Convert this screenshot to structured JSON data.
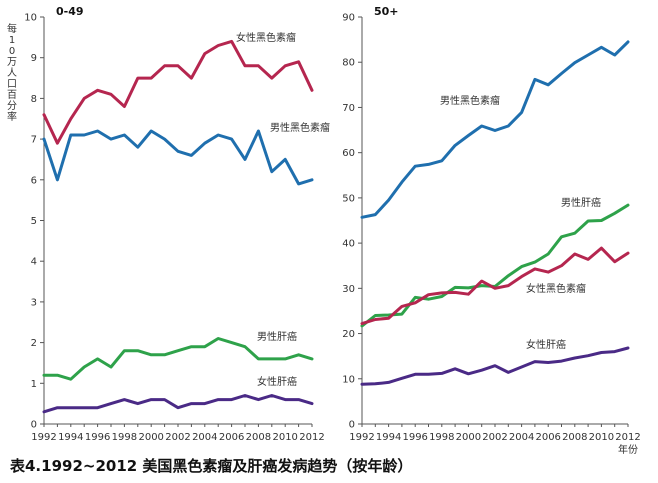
{
  "caption": "表4.1992~2012 美国黑色素瘤及肝癌发病趋势（按年龄）",
  "chart_data": [
    {
      "type": "line",
      "title": "0-49",
      "ylabel": "每10万人口百分率",
      "xlabel": "",
      "ylim": [
        0,
        10
      ],
      "yticks": [
        "0",
        "1",
        "2",
        "3",
        "4",
        "5",
        "6",
        "7",
        "8",
        "9",
        "10"
      ],
      "xticks": [
        "1992",
        "1994",
        "1996",
        "1998",
        "2000",
        "2002",
        "2004",
        "2006",
        "2008",
        "2010",
        "2012"
      ],
      "x": [
        1992,
        1993,
        1994,
        1995,
        1996,
        1997,
        1998,
        1999,
        2000,
        2001,
        2002,
        2003,
        2004,
        2005,
        2006,
        2007,
        2008,
        2009,
        2010,
        2011,
        2012
      ],
      "series": [
        {
          "name": "女性黑色素瘤",
          "color": "#b5264f",
          "values": [
            7.6,
            6.9,
            7.5,
            8.0,
            8.2,
            8.1,
            7.8,
            8.5,
            8.5,
            8.8,
            8.8,
            8.5,
            9.1,
            9.3,
            9.4,
            8.8,
            8.8,
            8.5,
            8.8,
            8.9,
            8.2
          ]
        },
        {
          "name": "男性黑色素瘤",
          "color": "#1f6fae",
          "values": [
            7.0,
            6.0,
            7.1,
            7.1,
            7.2,
            7.0,
            7.1,
            6.8,
            7.2,
            7.0,
            6.7,
            6.6,
            6.9,
            7.1,
            7.0,
            6.5,
            7.2,
            6.2,
            6.5,
            5.9,
            6.0
          ]
        },
        {
          "name": "男性肝癌",
          "color": "#2ea24a",
          "values": [
            1.2,
            1.2,
            1.1,
            1.4,
            1.6,
            1.4,
            1.8,
            1.8,
            1.7,
            1.7,
            1.8,
            1.9,
            1.9,
            2.1,
            2.0,
            1.9,
            1.6,
            1.6,
            1.6,
            1.7,
            1.6
          ]
        },
        {
          "name": "女性肝癌",
          "color": "#4a2a86",
          "values": [
            0.3,
            0.4,
            0.4,
            0.4,
            0.4,
            0.5,
            0.6,
            0.5,
            0.6,
            0.6,
            0.4,
            0.5,
            0.5,
            0.6,
            0.6,
            0.7,
            0.6,
            0.7,
            0.6,
            0.6,
            0.5
          ]
        }
      ]
    },
    {
      "type": "line",
      "title": "50+",
      "xlabel": "年份",
      "ylabel": "",
      "ylim": [
        0,
        90
      ],
      "yticks": [
        "0",
        "10",
        "20",
        "30",
        "40",
        "50",
        "60",
        "70",
        "80",
        "90"
      ],
      "xticks": [
        "1992",
        "1994",
        "1996",
        "1998",
        "2000",
        "2002",
        "2004",
        "2006",
        "2008",
        "2010",
        "2012"
      ],
      "x": [
        1992,
        1993,
        1994,
        1995,
        1996,
        1997,
        1998,
        1999,
        2000,
        2001,
        2002,
        2003,
        2004,
        2005,
        2006,
        2007,
        2008,
        2009,
        2010,
        2011,
        2012
      ],
      "series": [
        {
          "name": "男性黑色素瘤",
          "color": "#1f6fae",
          "values": [
            45.7,
            46.3,
            49.5,
            53.5,
            57.0,
            57.4,
            58.2,
            61.6,
            63.8,
            65.9,
            64.9,
            65.9,
            68.9,
            76.2,
            75.0,
            77.5,
            79.9,
            81.6,
            83.3,
            81.6,
            84.5
          ]
        },
        {
          "name": "男性肝癌",
          "color": "#2ea24a",
          "values": [
            21.7,
            24.0,
            24.1,
            24.3,
            28.0,
            27.6,
            28.2,
            30.2,
            30.1,
            30.6,
            30.4,
            32.8,
            34.8,
            35.8,
            37.6,
            41.4,
            42.2,
            44.9,
            45.0,
            46.6,
            48.4
          ]
        },
        {
          "name": "女性黑色素瘤",
          "color": "#b5264f",
          "values": [
            22.2,
            23.1,
            23.4,
            26.0,
            26.8,
            28.6,
            29.0,
            29.1,
            28.7,
            31.6,
            30.0,
            30.6,
            32.6,
            34.3,
            33.6,
            35.0,
            37.6,
            36.4,
            38.9,
            35.9,
            37.8
          ]
        },
        {
          "name": "女性肝癌",
          "color": "#4a2a86",
          "values": [
            8.8,
            8.9,
            9.2,
            10.1,
            11.0,
            11.0,
            11.2,
            12.2,
            11.1,
            11.9,
            12.9,
            11.4,
            12.6,
            13.8,
            13.6,
            13.9,
            14.6,
            15.1,
            15.8,
            16.0,
            16.8
          ]
        }
      ]
    }
  ]
}
